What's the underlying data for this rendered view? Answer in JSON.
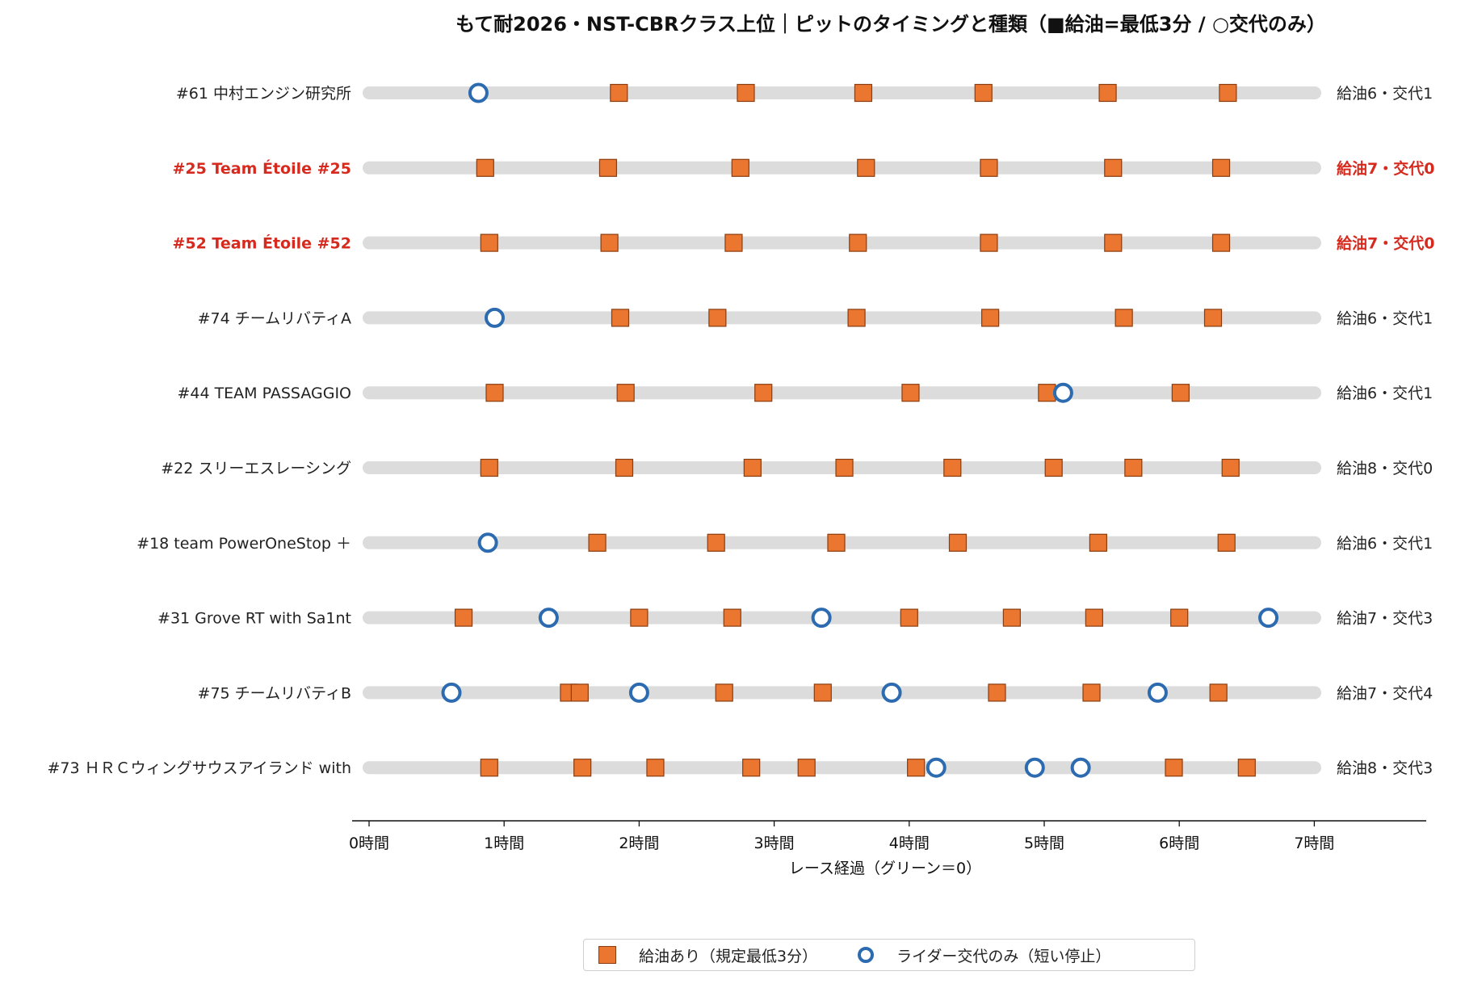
{
  "chart_data": {
    "type": "scatter",
    "title": "もて耐2026・NST-CBRクラス上位｜ピットのタイミングと種類（■給油=最低3分 / ○交代のみ）",
    "xlabel": "レース経過（グリーン＝0）",
    "ylabel": "",
    "xlim": [
      -0.13,
      7.85
    ],
    "xticks": [
      {
        "value": 0,
        "label": "0時間"
      },
      {
        "value": 1,
        "label": "1時間"
      },
      {
        "value": 2,
        "label": "2時間"
      },
      {
        "value": 3,
        "label": "3時間"
      },
      {
        "value": 4,
        "label": "4時間"
      },
      {
        "value": 5,
        "label": "5時間"
      },
      {
        "value": 6,
        "label": "6時間"
      },
      {
        "value": 7,
        "label": "7時間"
      }
    ],
    "grid": false,
    "legend_position": "bottom-center",
    "legend": [
      {
        "kind": "fuel",
        "label": "給油あり（規定最低3分）"
      },
      {
        "kind": "swap",
        "label": "ライダー交代のみ（短い停止）"
      }
    ],
    "colors": {
      "fuel": "#ea7630",
      "fuel_edge": "#8a3d10",
      "swap": "#2d6bb1",
      "track": "#dcdcdc",
      "highlight": "#d62a1e"
    },
    "teams": [
      {
        "name": "#61 中村エンジン研究所",
        "count": "給油6・交代1",
        "highlight": false,
        "fuel": [
          1.85,
          2.79,
          3.66,
          4.55,
          5.47,
          6.36
        ],
        "swap": [
          0.81
        ]
      },
      {
        "name": "#25 Team Étoile #25",
        "count": "給油7・交代0",
        "highlight": true,
        "fuel": [
          0.86,
          1.77,
          2.75,
          3.68,
          4.59,
          5.51,
          6.31
        ],
        "swap": []
      },
      {
        "name": "#52 Team Étoile #52",
        "count": "給油7・交代0",
        "highlight": true,
        "fuel": [
          0.89,
          1.78,
          2.7,
          3.62,
          4.59,
          5.51,
          6.31
        ],
        "swap": []
      },
      {
        "name": "#74 チームリバティA",
        "count": "給油6・交代1",
        "highlight": false,
        "fuel": [
          1.86,
          2.58,
          3.61,
          4.6,
          5.59,
          6.25
        ],
        "swap": [
          0.93
        ]
      },
      {
        "name": "#44 TEAM PASSAGGIO",
        "count": "給油6・交代1",
        "highlight": false,
        "fuel": [
          0.93,
          1.9,
          2.92,
          4.01,
          5.02,
          6.01
        ],
        "swap": [
          5.14
        ]
      },
      {
        "name": "#22 スリーエスレーシング",
        "count": "給油8・交代0",
        "highlight": false,
        "fuel": [
          0.89,
          1.89,
          2.84,
          3.52,
          4.32,
          5.07,
          5.66,
          6.38
        ],
        "swap": []
      },
      {
        "name": "#18 team PowerOneStop ＋",
        "count": "給油6・交代1",
        "highlight": false,
        "fuel": [
          1.69,
          2.57,
          3.46,
          4.36,
          5.4,
          6.35
        ],
        "swap": [
          0.88
        ]
      },
      {
        "name": "#31 Grove RT with Sa1nt",
        "count": "給油7・交代3",
        "highlight": false,
        "fuel": [
          0.7,
          2.0,
          2.69,
          4.0,
          4.76,
          5.37,
          6.0
        ],
        "swap": [
          1.33,
          3.35,
          6.66
        ]
      },
      {
        "name": "#75 チームリバティB",
        "count": "給油7・交代4",
        "highlight": false,
        "fuel": [
          1.48,
          1.56,
          2.63,
          3.36,
          4.65,
          5.35,
          6.29
        ],
        "swap": [
          0.61,
          2.0,
          3.87,
          5.84
        ]
      },
      {
        "name": "#73 ＨＲＣウィングサウスアイランド with",
        "count": "給油8・交代3",
        "highlight": false,
        "fuel": [
          0.89,
          1.58,
          2.12,
          2.83,
          3.24,
          4.05,
          5.96,
          6.5
        ],
        "swap": [
          4.2,
          4.93,
          5.27
        ]
      }
    ]
  }
}
